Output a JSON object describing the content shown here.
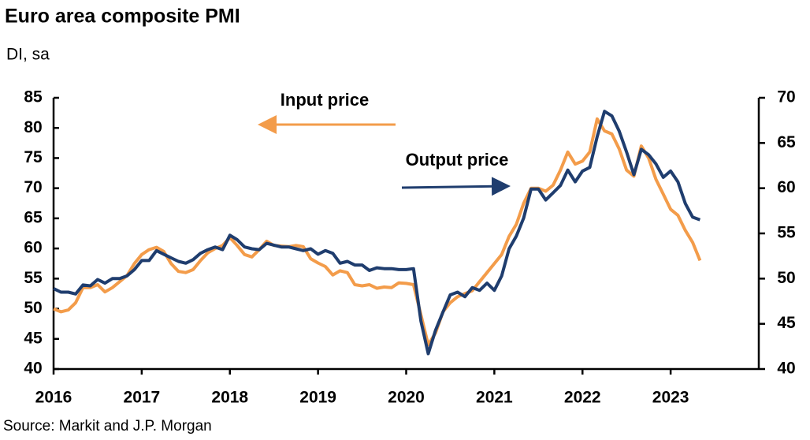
{
  "chart_data": {
    "type": "line",
    "title": "Euro area composite PMI",
    "subtitle": "DI, sa",
    "source": "Source: Markit and J.P. Morgan",
    "annotations": [
      "Input price",
      "Output price"
    ],
    "x": [
      2016,
      2016.083,
      2016.167,
      2016.25,
      2016.333,
      2016.417,
      2016.5,
      2016.583,
      2016.667,
      2016.75,
      2016.833,
      2016.917,
      2017,
      2017.083,
      2017.167,
      2017.25,
      2017.333,
      2017.417,
      2017.5,
      2017.583,
      2017.667,
      2017.75,
      2017.833,
      2017.917,
      2018,
      2018.083,
      2018.167,
      2018.25,
      2018.333,
      2018.417,
      2018.5,
      2018.583,
      2018.667,
      2018.75,
      2018.833,
      2018.917,
      2019,
      2019.083,
      2019.167,
      2019.25,
      2019.333,
      2019.417,
      2019.5,
      2019.583,
      2019.667,
      2019.75,
      2019.833,
      2019.917,
      2020,
      2020.083,
      2020.167,
      2020.25,
      2020.333,
      2020.417,
      2020.5,
      2020.583,
      2020.667,
      2020.75,
      2020.833,
      2020.917,
      2021,
      2021.083,
      2021.167,
      2021.25,
      2021.333,
      2021.417,
      2021.5,
      2021.583,
      2021.667,
      2021.75,
      2021.833,
      2021.917,
      2022,
      2022.083,
      2022.167,
      2022.25,
      2022.333,
      2022.417,
      2022.5,
      2022.583,
      2022.667,
      2022.75,
      2022.833,
      2022.917,
      2023,
      2023.083,
      2023.167,
      2023.25,
      2023.333
    ],
    "series": [
      {
        "name": "Input price",
        "color": "#f39c4a",
        "axis": "y",
        "values": [
          50,
          49.5,
          49.8,
          51,
          53.5,
          53.5,
          54,
          52.8,
          53.5,
          54.5,
          55.5,
          57.5,
          59,
          59.8,
          60.2,
          59.5,
          57.5,
          56.2,
          56,
          56.5,
          58,
          59.3,
          60,
          60.5,
          61.8,
          60.5,
          59,
          58.6,
          59.8,
          61.2,
          60.5,
          60.4,
          60.3,
          60.5,
          60.3,
          58.3,
          57.6,
          57,
          55.6,
          56.3,
          56,
          54,
          53.8,
          54,
          53.4,
          53.6,
          53.5,
          54.3,
          54.2,
          54,
          49,
          44,
          46,
          49.5,
          51,
          52,
          52.5,
          53,
          54.5,
          56,
          57.5,
          59,
          62,
          64,
          67.5,
          70,
          70,
          69.5,
          70.5,
          73,
          76,
          74,
          74.5,
          76,
          81.5,
          79.5,
          79,
          76.5,
          73,
          72,
          77,
          75,
          71.5,
          69,
          66.5,
          65.5,
          63,
          61,
          58
        ]
      },
      {
        "name": "Output price",
        "color": "#1f3d6e",
        "axis": "y2",
        "values": [
          48.9,
          48.5,
          48.5,
          48.3,
          49.3,
          49.2,
          49.9,
          49.5,
          50,
          50,
          50.3,
          51,
          52,
          52,
          53.1,
          52.7,
          52.3,
          51.9,
          51.7,
          52.1,
          52.8,
          53.2,
          53.5,
          53.2,
          54.8,
          54.3,
          53.5,
          53.3,
          53.2,
          53.9,
          53.7,
          53.5,
          53.5,
          53.3,
          53.1,
          53.3,
          52.7,
          53.1,
          52.8,
          51.7,
          51.9,
          51.5,
          51.5,
          50.9,
          51.2,
          51.1,
          51.1,
          51,
          51,
          51.1,
          45.3,
          41.7,
          44.3,
          46.3,
          48.2,
          48.5,
          48,
          49,
          48.7,
          49.5,
          48.7,
          50.3,
          53.3,
          54.7,
          56.7,
          59.9,
          59.9,
          58.7,
          59.5,
          60.3,
          62,
          60.7,
          61.9,
          62.3,
          65.7,
          68.5,
          68,
          66.3,
          64,
          61.5,
          64.3,
          63.7,
          62.7,
          61.2,
          61.9,
          60.7,
          58.3,
          56.8,
          56.5
        ]
      }
    ],
    "xlim": [
      2016,
      2024
    ],
    "xticks": [
      2016,
      2017,
      2018,
      2019,
      2020,
      2021,
      2022,
      2023
    ],
    "ylim": [
      40,
      85
    ],
    "yticks": [
      40,
      45,
      50,
      55,
      60,
      65,
      70,
      75,
      80,
      85
    ],
    "y2lim": [
      40,
      70
    ],
    "y2ticks": [
      40,
      45,
      50,
      55,
      60,
      65,
      70
    ]
  }
}
